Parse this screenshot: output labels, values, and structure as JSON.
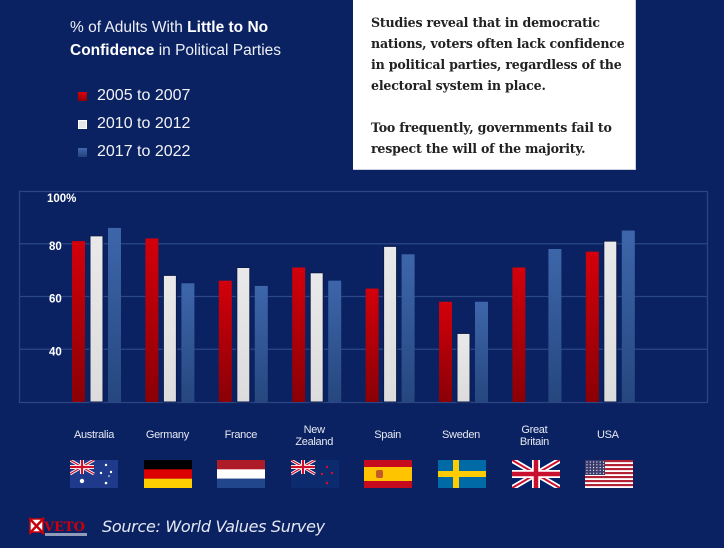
{
  "title": {
    "prefix": "% of Adults With ",
    "bold1": "Little to No",
    "bold2": "Confidence",
    "suffix": " in Political Parties"
  },
  "note": {
    "paragraph1": "Studies reveal that in democratic nations, voters often lack confidence in political parties, regardless of the electoral system in place.",
    "paragraph2": "Too frequently, governments fail to respect the will of the majority."
  },
  "colors": {
    "background": "#0b2262",
    "series_2005": "#c40008",
    "series_2010": "#e3e3e3",
    "series_2017": "#3a63a6"
  },
  "chart_data": {
    "type": "bar",
    "title": "% of Adults With Little to No Confidence in Political Parties",
    "xlabel": "",
    "ylabel": "",
    "ylim": [
      20,
      100
    ],
    "yticks": [
      40,
      60,
      80,
      100
    ],
    "ytick_labels": [
      "40",
      "60",
      "80",
      "100%"
    ],
    "grid": true,
    "legend_position": "top-left",
    "categories": [
      "Australia",
      "Germany",
      "France",
      "New Zealand",
      "Spain",
      "Sweden",
      "Great Britain",
      "USA"
    ],
    "category_labels": [
      [
        "Australia"
      ],
      [
        "Germany"
      ],
      [
        "France"
      ],
      [
        "New",
        "Zealand"
      ],
      [
        "Spain"
      ],
      [
        "Sweden"
      ],
      [
        "Great",
        "Britain"
      ],
      [
        "USA"
      ]
    ],
    "series": [
      {
        "name": "2005 to 2007",
        "color": "#c40008",
        "values": [
          81,
          82,
          66,
          71,
          63,
          58,
          71,
          77
        ]
      },
      {
        "name": "2010 to 2012",
        "color": "#e3e3e3",
        "values": [
          83,
          68,
          71,
          69,
          79,
          46,
          null,
          81
        ]
      },
      {
        "name": "2017 to 2022",
        "color": "#3a63a6",
        "values": [
          86,
          65,
          64,
          66,
          76,
          58,
          78,
          85
        ]
      }
    ]
  },
  "flags": [
    "australia-flag",
    "germany-flag",
    "france-flag",
    "new-zealand-flag",
    "spain-flag",
    "sweden-flag",
    "great-britain-flag",
    "usa-flag"
  ],
  "footer": {
    "logo_text": "VETO",
    "source": "Source: World Values Survey"
  }
}
